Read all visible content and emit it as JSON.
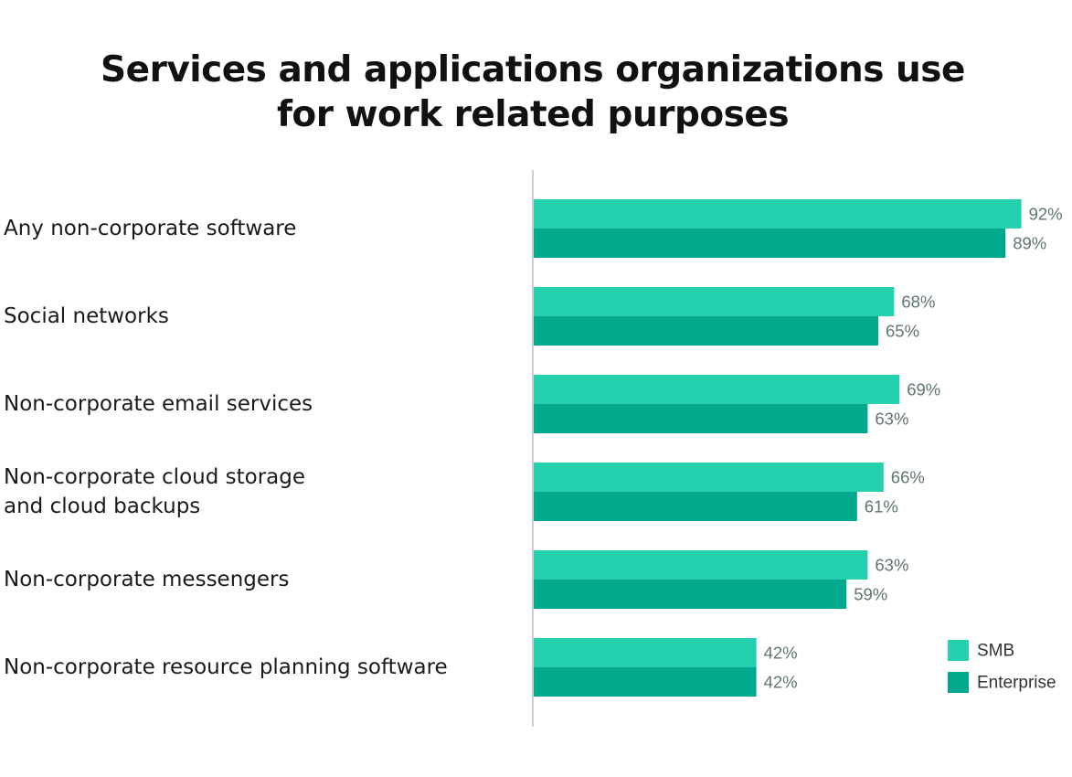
{
  "chart_data": {
    "type": "bar",
    "orientation": "horizontal",
    "title": "Services and applications organizations use for work related purposes",
    "title_lines": [
      "Services and applications organizations use",
      "for work related purposes"
    ],
    "categories": [
      [
        "Any non-corporate software"
      ],
      [
        "Social networks"
      ],
      [
        "Non-corporate email services"
      ],
      [
        "Non-corporate cloud storage",
        "and cloud backups"
      ],
      [
        "Non-corporate messengers"
      ],
      [
        "Non-corporate resource planning software"
      ]
    ],
    "series": [
      {
        "name": "SMB",
        "color": "#24d0ad",
        "values": [
          92,
          68,
          69,
          66,
          63,
          42
        ],
        "labels": [
          "92%",
          "68%",
          "69%",
          "66%",
          "63%",
          "42%"
        ]
      },
      {
        "name": "Enterprise",
        "color": "#00a88c",
        "values": [
          89,
          65,
          63,
          61,
          59,
          42
        ],
        "labels": [
          "89%",
          "65%",
          "63%",
          "61%",
          "59%",
          "42%"
        ]
      }
    ],
    "xlim": [
      0,
      100
    ],
    "unit": "%",
    "grid": false,
    "legend_position": "bottom-right",
    "axis_color": "#c8d2cf"
  }
}
